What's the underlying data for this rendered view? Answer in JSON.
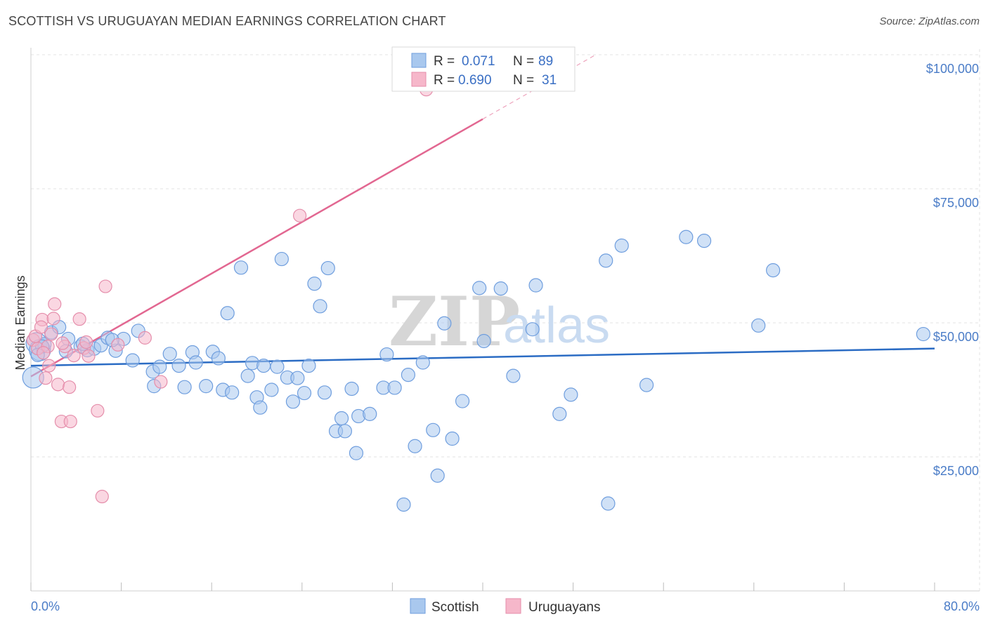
{
  "header": {
    "title": "SCOTTISH VS URUGUAYAN MEDIAN EARNINGS CORRELATION CHART",
    "source": "Source: ZipAtlas.com"
  },
  "legend": {
    "scottish": {
      "r_label": "R =",
      "r_value": "0.071",
      "n_label": "N =",
      "n_value": "89"
    },
    "uruguayan": {
      "r_label": "R =",
      "r_value": "0.690",
      "n_label": "N =",
      "n_value": "31"
    }
  },
  "watermark": {
    "zip": "ZIP",
    "atlas": "atlas"
  },
  "colors": {
    "scottish_fill": "#a9c8ee",
    "scottish_stroke": "#6f9ede",
    "scottish_line": "#2b6cc4",
    "uruguayan_fill": "#f6b7ca",
    "uruguayan_stroke": "#e58eab",
    "uruguayan_line": "#e26791",
    "grid": "#e3e3e3",
    "tick_label": "#4a7cc7"
  },
  "chart_data": {
    "type": "scatter",
    "title": "SCOTTISH VS URUGUAYAN MEDIAN EARNINGS CORRELATION CHART",
    "xlabel": "",
    "ylabel": "Median Earnings",
    "xlim": [
      0,
      80
    ],
    "ylim": [
      5000,
      105000
    ],
    "x_tick_labels": [
      "0.0%",
      "80.0%"
    ],
    "y_ticks": [
      25000,
      50000,
      75000,
      100000
    ],
    "y_tick_labels": [
      "$25,000",
      "$50,000",
      "$75,000",
      "$100,000"
    ],
    "grid": true,
    "legend_position": "top-center",
    "bottom_legend": [
      "Scottish",
      "Uruguayans"
    ],
    "series": [
      {
        "name": "Scottish",
        "trend": {
          "x": [
            0,
            80
          ],
          "y": [
            42000,
            45200
          ]
        },
        "points": [
          [
            0.2,
            39800
          ],
          [
            0.5,
            46200
          ],
          [
            0.8,
            44900
          ],
          [
            1.2,
            46000
          ],
          [
            1.8,
            48200
          ],
          [
            2.5,
            49200
          ],
          [
            3.3,
            47000
          ],
          [
            4.4,
            45600
          ],
          [
            5.0,
            44900
          ],
          [
            5.6,
            45200
          ],
          [
            6.2,
            45800
          ],
          [
            6.8,
            47200
          ],
          [
            7.5,
            44800
          ],
          [
            8.2,
            47000
          ],
          [
            9.0,
            43000
          ],
          [
            9.5,
            48500
          ],
          [
            10.8,
            40900
          ],
          [
            11.4,
            41800
          ],
          [
            12.3,
            44200
          ],
          [
            13.1,
            42000
          ],
          [
            13.6,
            38000
          ],
          [
            14.3,
            44500
          ],
          [
            14.6,
            42600
          ],
          [
            15.5,
            38200
          ],
          [
            16.1,
            44600
          ],
          [
            16.6,
            43400
          ],
          [
            17.0,
            37500
          ],
          [
            17.4,
            51800
          ],
          [
            17.8,
            37000
          ],
          [
            18.6,
            60300
          ],
          [
            19.2,
            40100
          ],
          [
            19.6,
            42500
          ],
          [
            20.0,
            36100
          ],
          [
            20.3,
            34200
          ],
          [
            20.6,
            42000
          ],
          [
            21.3,
            37500
          ],
          [
            21.8,
            41800
          ],
          [
            22.2,
            61900
          ],
          [
            22.7,
            39800
          ],
          [
            23.2,
            35300
          ],
          [
            23.6,
            39700
          ],
          [
            24.2,
            36900
          ],
          [
            24.6,
            42000
          ],
          [
            25.1,
            57300
          ],
          [
            25.6,
            53100
          ],
          [
            26.0,
            37000
          ],
          [
            26.3,
            60200
          ],
          [
            27.0,
            29800
          ],
          [
            27.5,
            32200
          ],
          [
            27.8,
            29800
          ],
          [
            28.4,
            37700
          ],
          [
            28.8,
            25700
          ],
          [
            29.0,
            32600
          ],
          [
            30.0,
            33000
          ],
          [
            31.2,
            37900
          ],
          [
            31.5,
            44100
          ],
          [
            32.2,
            37900
          ],
          [
            33.0,
            16100
          ],
          [
            33.4,
            40300
          ],
          [
            34.0,
            27000
          ],
          [
            34.7,
            42600
          ],
          [
            35.6,
            30000
          ],
          [
            36.0,
            21500
          ],
          [
            36.6,
            49900
          ],
          [
            37.3,
            28400
          ],
          [
            38.2,
            35400
          ],
          [
            39.7,
            56500
          ],
          [
            40.1,
            46600
          ],
          [
            41.6,
            56400
          ],
          [
            42.7,
            40100
          ],
          [
            44.4,
            48800
          ],
          [
            44.7,
            57000
          ],
          [
            46.8,
            33000
          ],
          [
            47.8,
            36600
          ],
          [
            50.9,
            61600
          ],
          [
            51.1,
            16300
          ],
          [
            52.3,
            64400
          ],
          [
            54.5,
            38400
          ],
          [
            58.0,
            66000
          ],
          [
            59.6,
            65300
          ],
          [
            64.4,
            49500
          ],
          [
            65.7,
            59800
          ],
          [
            79.0,
            47900
          ],
          [
            4.6,
            46100
          ],
          [
            7.2,
            46800
          ],
          [
            1.0,
            45600
          ],
          [
            10.9,
            38200
          ],
          [
            0.6,
            44000
          ],
          [
            3.1,
            44700
          ]
        ]
      },
      {
        "name": "Uruguayans",
        "trend": {
          "x": [
            0,
            40
          ],
          "y": [
            40000,
            88000
          ]
        },
        "trend_dashed": {
          "x": [
            40,
            50
          ],
          "y": [
            88000,
            100000
          ]
        },
        "points": [
          [
            0.2,
            46800
          ],
          [
            0.6,
            45200
          ],
          [
            1.0,
            50600
          ],
          [
            1.3,
            39700
          ],
          [
            1.5,
            45600
          ],
          [
            1.8,
            47900
          ],
          [
            2.0,
            50800
          ],
          [
            2.1,
            53500
          ],
          [
            2.4,
            38500
          ],
          [
            2.7,
            31600
          ],
          [
            3.0,
            45600
          ],
          [
            3.4,
            38000
          ],
          [
            3.5,
            31600
          ],
          [
            3.8,
            43900
          ],
          [
            4.3,
            50700
          ],
          [
            4.7,
            45300
          ],
          [
            5.1,
            43800
          ],
          [
            5.9,
            33600
          ],
          [
            6.3,
            17600
          ],
          [
            6.6,
            56800
          ],
          [
            7.7,
            45900
          ],
          [
            10.1,
            47200
          ],
          [
            11.5,
            39000
          ],
          [
            23.8,
            70000
          ],
          [
            35.0,
            93500
          ],
          [
            0.4,
            47500
          ],
          [
            1.1,
            44400
          ],
          [
            1.6,
            42000
          ],
          [
            2.8,
            46200
          ],
          [
            4.9,
            46400
          ],
          [
            0.9,
            49200
          ]
        ]
      }
    ]
  }
}
